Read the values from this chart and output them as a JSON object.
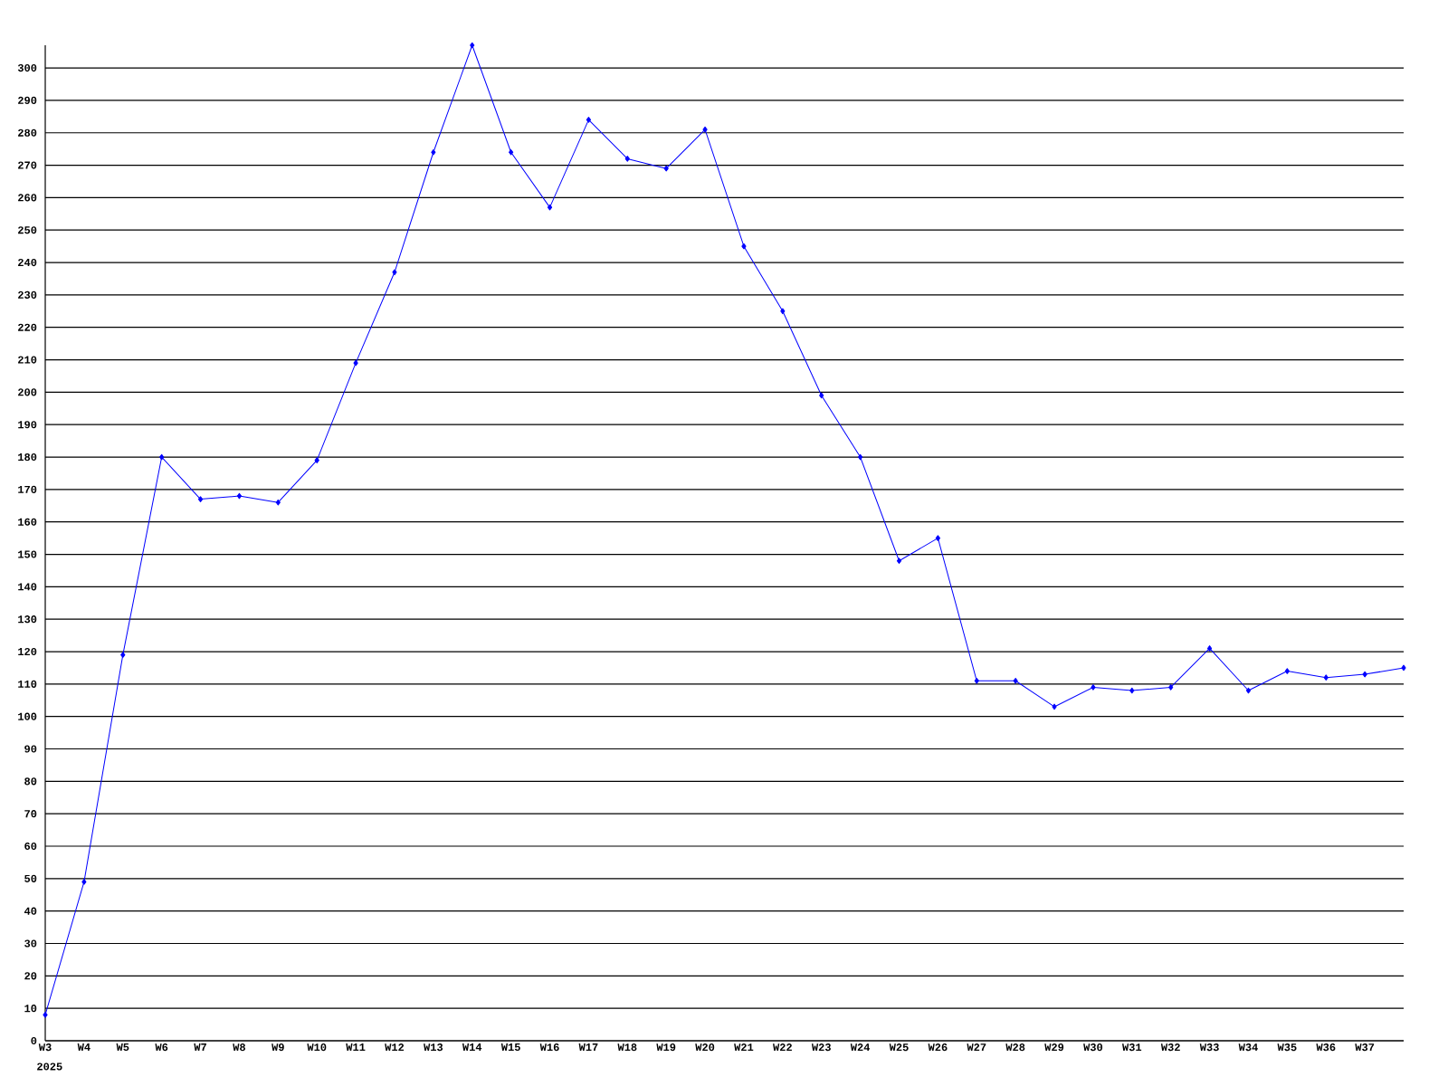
{
  "chart_data": {
    "type": "line",
    "categories": [
      "W3",
      "W4",
      "W5",
      "W6",
      "W7",
      "W8",
      "W9",
      "W10",
      "W11",
      "W12",
      "W13",
      "W14",
      "W15",
      "W16",
      "W17",
      "W18",
      "W19",
      "W20",
      "W21",
      "W22",
      "W23",
      "W24",
      "W25",
      "W26",
      "W27",
      "W28",
      "W29",
      "W30",
      "W31",
      "W32",
      "W33",
      "W34",
      "W35",
      "W36",
      "W37",
      null
    ],
    "values": [
      8,
      49,
      119,
      180,
      167,
      168,
      166,
      179,
      209,
      237,
      274,
      307,
      274,
      257,
      284,
      272,
      269,
      281,
      245,
      225,
      199,
      180,
      148,
      155,
      111,
      111,
      103,
      109,
      108,
      109,
      121,
      108,
      114,
      112,
      113,
      115
    ],
    "color": "#0000ff",
    "ylim": [
      0,
      307
    ],
    "yticks": [
      0,
      10,
      20,
      30,
      40,
      50,
      60,
      70,
      80,
      90,
      100,
      110,
      120,
      130,
      140,
      150,
      160,
      170,
      180,
      190,
      200,
      210,
      220,
      230,
      240,
      250,
      260,
      270,
      280,
      290,
      300
    ],
    "grid": "y",
    "marker": "diamond",
    "annotations": [
      "2025"
    ]
  }
}
